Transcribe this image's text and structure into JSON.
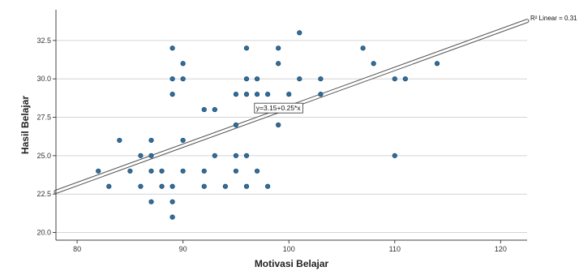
{
  "chart_data": {
    "type": "scatter",
    "title": "",
    "xlabel": "Motivasi Belajar",
    "ylabel": "Hasil Belajar",
    "xlim": [
      78,
      122.5
    ],
    "ylim": [
      19.5,
      34.5
    ],
    "x_ticks": [
      80,
      90,
      100,
      110,
      120
    ],
    "y_ticks": [
      20.0,
      22.5,
      25.0,
      27.5,
      30.0,
      32.5
    ],
    "x_tick_labels": [
      "80",
      "90",
      "100",
      "110",
      "120"
    ],
    "y_tick_labels": [
      "20.0",
      "22.5",
      "25.0",
      "27.5",
      "30.0",
      "32.5"
    ],
    "grid": "horizontal",
    "marker_color": "#2E6E9E",
    "points": [
      {
        "x": 82,
        "y": 24
      },
      {
        "x": 83,
        "y": 23
      },
      {
        "x": 84,
        "y": 26
      },
      {
        "x": 85,
        "y": 24
      },
      {
        "x": 86,
        "y": 25
      },
      {
        "x": 86,
        "y": 23
      },
      {
        "x": 87,
        "y": 26
      },
      {
        "x": 87,
        "y": 25
      },
      {
        "x": 87,
        "y": 24
      },
      {
        "x": 87,
        "y": 22
      },
      {
        "x": 88,
        "y": 24
      },
      {
        "x": 88,
        "y": 23
      },
      {
        "x": 89,
        "y": 32
      },
      {
        "x": 89,
        "y": 30
      },
      {
        "x": 89,
        "y": 29
      },
      {
        "x": 89,
        "y": 23
      },
      {
        "x": 89,
        "y": 22
      },
      {
        "x": 89,
        "y": 21
      },
      {
        "x": 90,
        "y": 31
      },
      {
        "x": 90,
        "y": 30
      },
      {
        "x": 90,
        "y": 26
      },
      {
        "x": 90,
        "y": 24
      },
      {
        "x": 92,
        "y": 28
      },
      {
        "x": 92,
        "y": 24
      },
      {
        "x": 92,
        "y": 23
      },
      {
        "x": 93,
        "y": 28
      },
      {
        "x": 93,
        "y": 25
      },
      {
        "x": 94,
        "y": 23
      },
      {
        "x": 95,
        "y": 29
      },
      {
        "x": 95,
        "y": 27
      },
      {
        "x": 95,
        "y": 25
      },
      {
        "x": 95,
        "y": 24
      },
      {
        "x": 96,
        "y": 32
      },
      {
        "x": 96,
        "y": 30
      },
      {
        "x": 96,
        "y": 29
      },
      {
        "x": 96,
        "y": 25
      },
      {
        "x": 96,
        "y": 23
      },
      {
        "x": 97,
        "y": 30
      },
      {
        "x": 97,
        "y": 29
      },
      {
        "x": 97,
        "y": 28
      },
      {
        "x": 97,
        "y": 24
      },
      {
        "x": 98,
        "y": 29
      },
      {
        "x": 98,
        "y": 23
      },
      {
        "x": 99,
        "y": 32
      },
      {
        "x": 99,
        "y": 31
      },
      {
        "x": 99,
        "y": 27
      },
      {
        "x": 100,
        "y": 29
      },
      {
        "x": 101,
        "y": 33
      },
      {
        "x": 101,
        "y": 30
      },
      {
        "x": 103,
        "y": 30
      },
      {
        "x": 103,
        "y": 29
      },
      {
        "x": 107,
        "y": 32
      },
      {
        "x": 108,
        "y": 31
      },
      {
        "x": 110,
        "y": 30
      },
      {
        "x": 110,
        "y": 25
      },
      {
        "x": 111,
        "y": 30
      },
      {
        "x": 114,
        "y": 31
      }
    ],
    "fit_line": {
      "intercept": 3.15,
      "slope": 0.25,
      "x_range": [
        78,
        122.5
      ],
      "equation_label": "y=3.15+0.25*x",
      "r2_label": "R² Linear = 0.31"
    }
  }
}
